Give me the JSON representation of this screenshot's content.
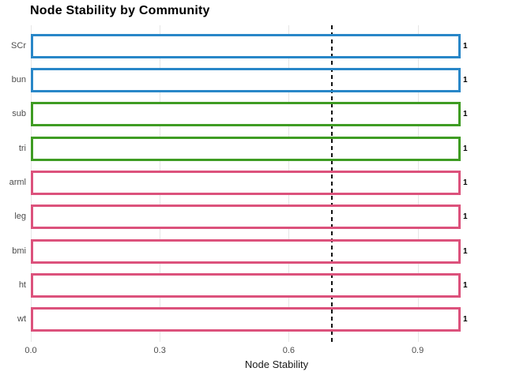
{
  "chart_data": {
    "type": "bar",
    "orientation": "horizontal",
    "title": "Node Stability by Community",
    "xlabel": "Node Stability",
    "ylabel": "",
    "categories": [
      "SCr",
      "bun",
      "sub",
      "tri",
      "arml",
      "leg",
      "bmi",
      "ht",
      "wt"
    ],
    "values": [
      1,
      1,
      1,
      1,
      1,
      1,
      1,
      1,
      1
    ],
    "bar_value_labels": [
      "1",
      "1",
      "1",
      "1",
      "1",
      "1",
      "1",
      "1",
      "1"
    ],
    "bar_colors": [
      "#2987C8",
      "#2987C8",
      "#3F9C23",
      "#3F9C23",
      "#DC527C",
      "#DC527C",
      "#DC527C",
      "#DC527C",
      "#DC527C"
    ],
    "bar_fill": "#FFFFFF",
    "communities": [
      {
        "color": "#2987C8",
        "members": [
          "SCr",
          "bun"
        ]
      },
      {
        "color": "#3F9C23",
        "members": [
          "sub",
          "tri"
        ]
      },
      {
        "color": "#DC527C",
        "members": [
          "arml",
          "leg",
          "bmi",
          "ht",
          "wt"
        ]
      }
    ],
    "xlim": [
      0,
      1.14
    ],
    "xticks": [
      0,
      0.3,
      0.6,
      0.9
    ],
    "xtick_labels": [
      "0.0",
      "0.3",
      "0.6",
      "0.9"
    ],
    "reference_line": {
      "value": 0.7,
      "style": "dashed",
      "color": "#111111"
    },
    "grid": "major-x-only",
    "gridline_color": "#E6E6E6",
    "legend": "none"
  }
}
